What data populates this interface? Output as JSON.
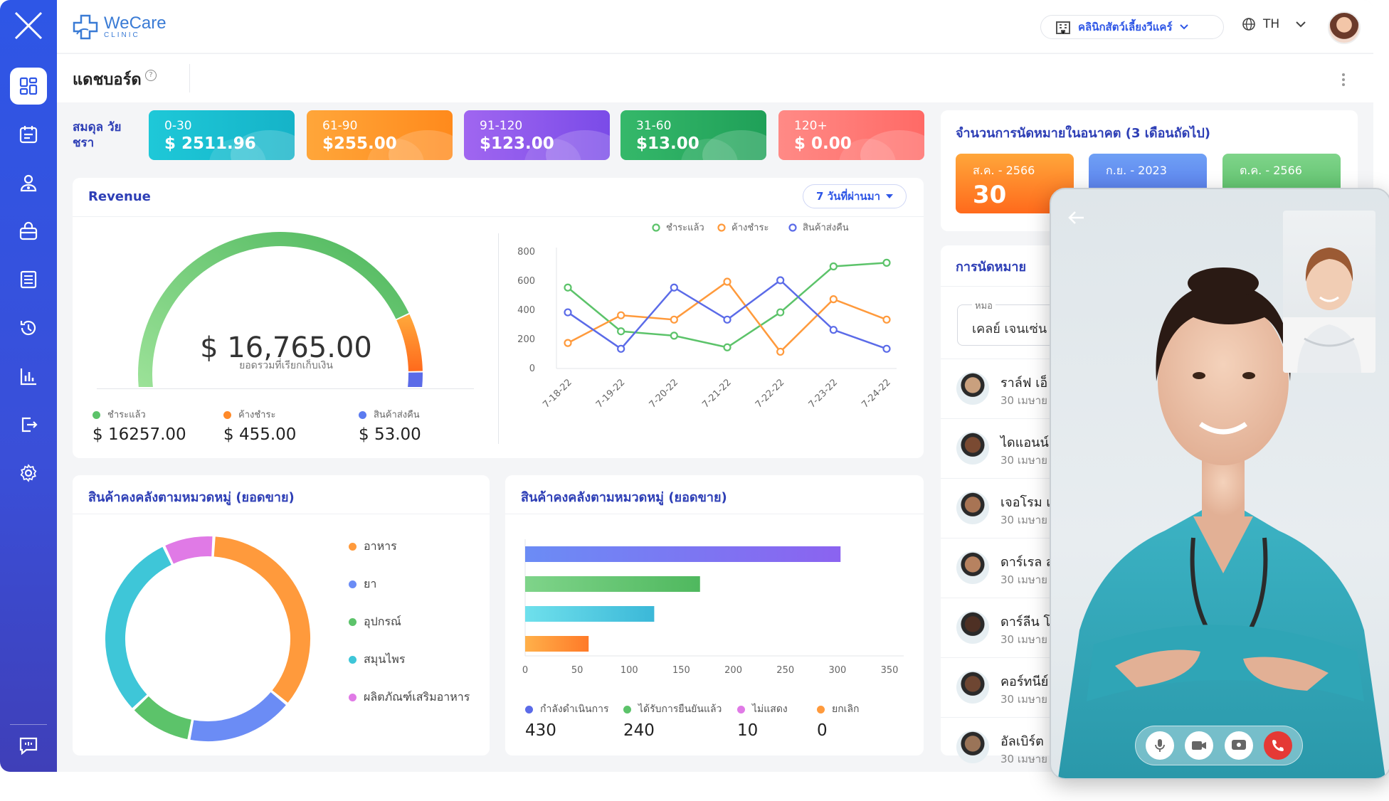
{
  "brand": {
    "name": "WeCare",
    "sub": "CLINIC"
  },
  "header": {
    "clinic": "คลินิกสัตว์เลี้ยงวีแคร์",
    "language": "TH"
  },
  "page": {
    "title": "แดชบอร์ด",
    "help": "?"
  },
  "sidebar": {
    "items": [
      "dashboard-icon",
      "appointment-icon",
      "patient-icon",
      "store-icon",
      "records-icon",
      "history-icon",
      "report-icon",
      "logout-icon",
      "settings-icon",
      "feedback-icon"
    ]
  },
  "balance": {
    "label": "สมดุล วัยชรา",
    "aging": [
      {
        "range": "0-30",
        "value": "$ 2511.96",
        "color1": "#1ec8d8",
        "color2": "#15b3c8"
      },
      {
        "range": "61-90",
        "value": "$255.00",
        "color1": "#ffa63a",
        "color2": "#ff8a1c"
      },
      {
        "range": "91-120",
        "value": "$123.00",
        "color1": "#a066f0",
        "color2": "#7a4be8"
      },
      {
        "range": "31-60",
        "value": "$13.00",
        "color1": "#35b86a",
        "color2": "#1fa058"
      },
      {
        "range": "120+",
        "value": "$ 0.00",
        "color1": "#ff8a86",
        "color2": "#ff6a66"
      }
    ]
  },
  "revenue": {
    "title": "Revenue",
    "range": "7 วันที่ผ่านมา",
    "total": "$ 16,765.00",
    "total_label": "ยอดรวมที่เรียกเก็บเงิน",
    "breakdown": [
      {
        "label": "ชำระแล้ว",
        "value": "$ 16257.00",
        "color": "#5cc36a"
      },
      {
        "label": "ค้างชำระ",
        "value": "$ 455.00",
        "color": "#ff8a2a"
      },
      {
        "label": "สินค้าส่งคืน",
        "value": "$ 53.00",
        "color": "#5b7bf0"
      }
    ]
  },
  "chart_data": [
    {
      "type": "line",
      "x": [
        "7-18-22",
        "7-19-22",
        "7-20-22",
        "7-21-22",
        "7-22-22",
        "7-23-22",
        "7-24-22"
      ],
      "ylim": [
        0,
        800
      ],
      "yticks": [
        0,
        200,
        400,
        600,
        800
      ],
      "series": [
        {
          "name": "ชำระแล้ว",
          "color": "#5cc36a",
          "values": [
            555,
            255,
            225,
            145,
            385,
            700,
            725
          ]
        },
        {
          "name": "ค้างชำระ",
          "color": "#ff9a3c",
          "values": [
            175,
            365,
            335,
            595,
            115,
            475,
            335
          ]
        },
        {
          "name": "สินค้าส่งคืน",
          "color": "#5b6be8",
          "values": [
            385,
            135,
            555,
            335,
            605,
            265,
            135
          ]
        }
      ]
    },
    {
      "type": "pie",
      "title": "สินค้าคงคลังตามหมวดหมู่ (ยอดขาย)",
      "categories": [
        "อาหาร",
        "ยา",
        "อุปกรณ์",
        "สมุนไพร",
        "ผลิตภัณฑ์เสริมอาหาร"
      ],
      "values": [
        35,
        17,
        10,
        30,
        8
      ],
      "colors": [
        "#ff9a3c",
        "#6b8cf5",
        "#5cc36a",
        "#3ec6d8",
        "#e07ae6"
      ]
    },
    {
      "type": "bar",
      "title": "สินค้าคงคลังตามหมวดหมู่ (ยอดขาย)",
      "xlim": [
        0,
        350
      ],
      "xticks": [
        0,
        50,
        100,
        150,
        200,
        250,
        300,
        350
      ],
      "values": [
        303,
        168,
        124,
        61
      ],
      "colors": [
        [
          "#6b8cf5",
          "#8b63f0"
        ],
        [
          "#7fd48a",
          "#4fb85e"
        ],
        [
          "#6fe0ec",
          "#3bb8d8"
        ],
        [
          "#ffb04a",
          "#ff7a28"
        ]
      ]
    }
  ],
  "appointment_status": [
    {
      "label": "กำลังดำเนินการ",
      "value": "430",
      "color": "#5b6be8"
    },
    {
      "label": "ได้รับการยืนยันแล้ว",
      "value": "240",
      "color": "#5cc36a"
    },
    {
      "label": "ไม่แสดง",
      "value": "10",
      "color": "#e07ae6"
    },
    {
      "label": "ยกเลิก",
      "value": "0",
      "color": "#ff9a3c"
    }
  ],
  "future": {
    "title": "จำนวนการนัดหมายในอนาคต (3 เดือนถัดไป)",
    "months": [
      {
        "month": "ส.ค. - 2566",
        "count": "30",
        "c1": "#ffa63a",
        "c2": "#ff6a1c"
      },
      {
        "month": "ก.ย. - 2023",
        "count": "",
        "c1": "#6fa0f5",
        "c2": "#4f6fe8"
      },
      {
        "month": "ต.ค. - 2566",
        "count": "",
        "c1": "#7fd48a",
        "c2": "#4fb85e"
      }
    ]
  },
  "appointments": {
    "title": "การนัดหมาย",
    "doctor_label": "หมอ",
    "doctor": "เคลย์ เจนเซ่น",
    "items": [
      {
        "name": "ราล์ฟ เอ็",
        "date": "30 เมษาย"
      },
      {
        "name": "ไดแอนน์",
        "date": "30 เมษาย"
      },
      {
        "name": "เจอโรม เ",
        "date": "30 เมษาย"
      },
      {
        "name": "ดาร์เรล ส",
        "date": "30 เมษาย"
      },
      {
        "name": "ดาร์ลีน โ",
        "date": "30 เมษาย"
      },
      {
        "name": "คอร์ทนีย์",
        "date": "30 เมษาย"
      },
      {
        "name": "อัลเบิร์ต",
        "date": "30 เมษาย"
      }
    ]
  }
}
